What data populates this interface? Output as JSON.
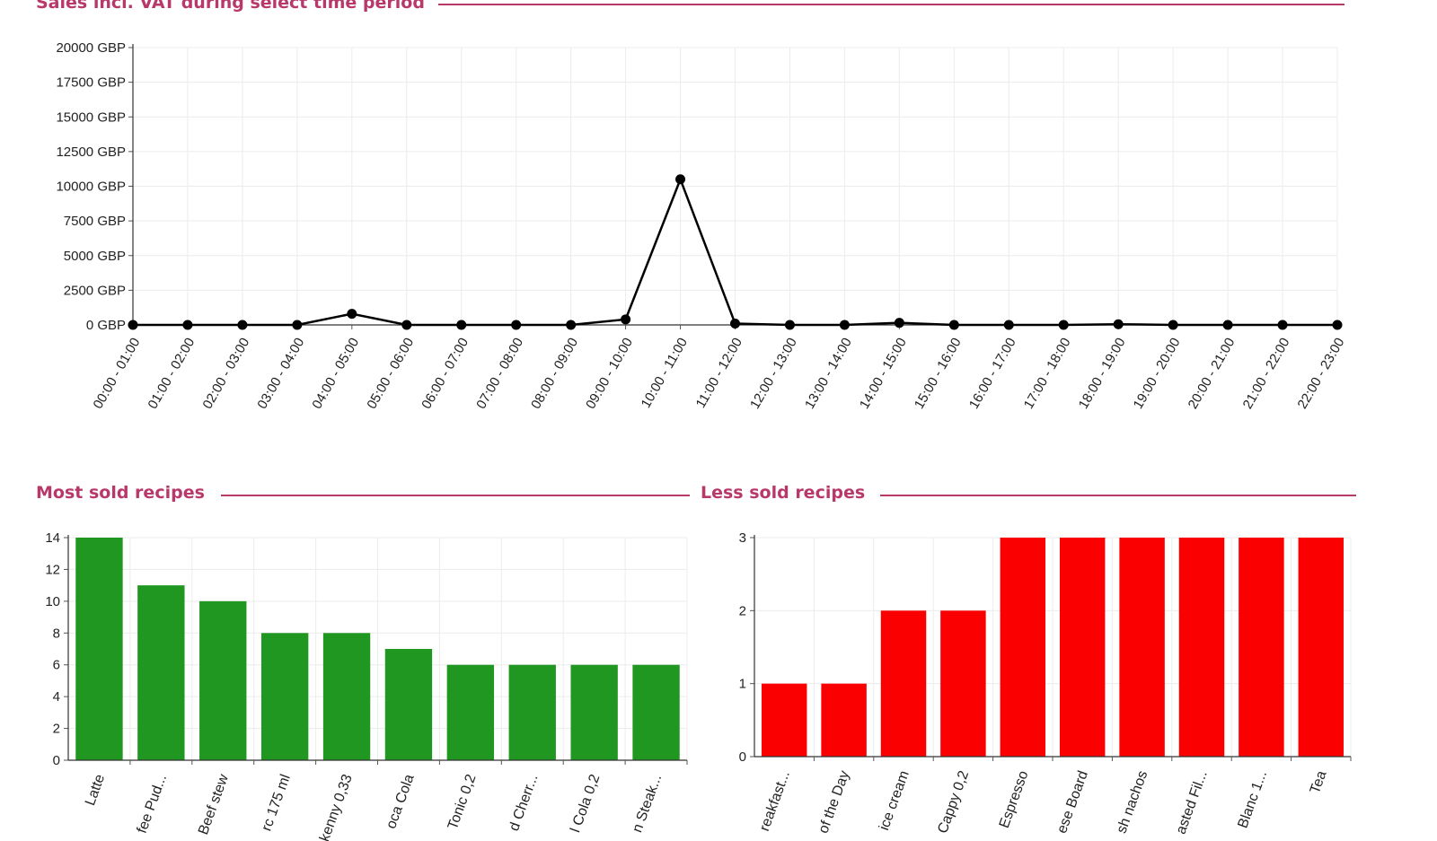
{
  "sections": {
    "sales_title": "Sales incl. VAT during select time period",
    "most_title": "Most sold recipes",
    "less_title": "Less sold recipes"
  },
  "colors": {
    "title": "#b8386a",
    "line": "#000000",
    "most_bar": "#209720",
    "less_bar": "#fa0000",
    "grid": "#ececec"
  },
  "chart_data": [
    {
      "type": "line",
      "title": "Sales incl. VAT during select time period",
      "unit": "GBP",
      "ylim": [
        0,
        20000
      ],
      "yticks": [
        0,
        2500,
        5000,
        7500,
        10000,
        12500,
        15000,
        17500,
        20000
      ],
      "ytick_labels": [
        "0 GBP",
        "2500 GBP",
        "5000 GBP",
        "7500 GBP",
        "10000 GBP",
        "12500 GBP",
        "15000 GBP",
        "17500 GBP",
        "20000 GBP"
      ],
      "grid": true,
      "categories": [
        "00:00 - 01:00",
        "01:00 - 02:00",
        "02:00 - 03:00",
        "03:00 - 04:00",
        "04:00 - 05:00",
        "05:00 - 06:00",
        "06:00 - 07:00",
        "07:00 - 08:00",
        "08:00 - 09:00",
        "09:00 - 10:00",
        "10:00 - 11:00",
        "11:00 - 12:00",
        "12:00 - 13:00",
        "13:00 - 14:00",
        "14:00 - 15:00",
        "15:00 - 16:00",
        "16:00 - 17:00",
        "17:00 - 18:00",
        "18:00 - 19:00",
        "19:00 - 20:00",
        "20:00 - 21:00",
        "21:00 - 22:00",
        "22:00 - 23:00"
      ],
      "values": [
        0,
        0,
        0,
        0,
        800,
        0,
        0,
        0,
        0,
        400,
        10500,
        100,
        0,
        0,
        150,
        0,
        0,
        0,
        50,
        0,
        0,
        0,
        0
      ]
    },
    {
      "type": "bar",
      "title": "Most sold recipes",
      "ylim": [
        0,
        14
      ],
      "yticks": [
        0,
        2,
        4,
        6,
        8,
        10,
        12,
        14
      ],
      "grid": true,
      "categories": [
        "Latte",
        "fee Pud...",
        "Beef stew",
        "rc 175 ml",
        "kenny 0,33",
        "oca Cola",
        "Tonic 0,2",
        "d Cherr...",
        "l Cola 0,2",
        "n Steak..."
      ],
      "values": [
        14,
        11,
        10,
        8,
        8,
        7,
        6,
        6,
        6,
        6
      ]
    },
    {
      "type": "bar",
      "title": "Less sold recipes",
      "ylim": [
        0,
        3
      ],
      "yticks": [
        0,
        1,
        2,
        3
      ],
      "grid": true,
      "categories": [
        "reakfast...",
        "of the Day",
        "ice cream",
        "Cappy 0,2",
        "Espresso",
        "ese Board",
        "sh nachos",
        "asted Fil...",
        "Blanc 1...",
        "Tea"
      ],
      "values": [
        1,
        1,
        2,
        2,
        3,
        3,
        3,
        3,
        3,
        3
      ]
    }
  ]
}
